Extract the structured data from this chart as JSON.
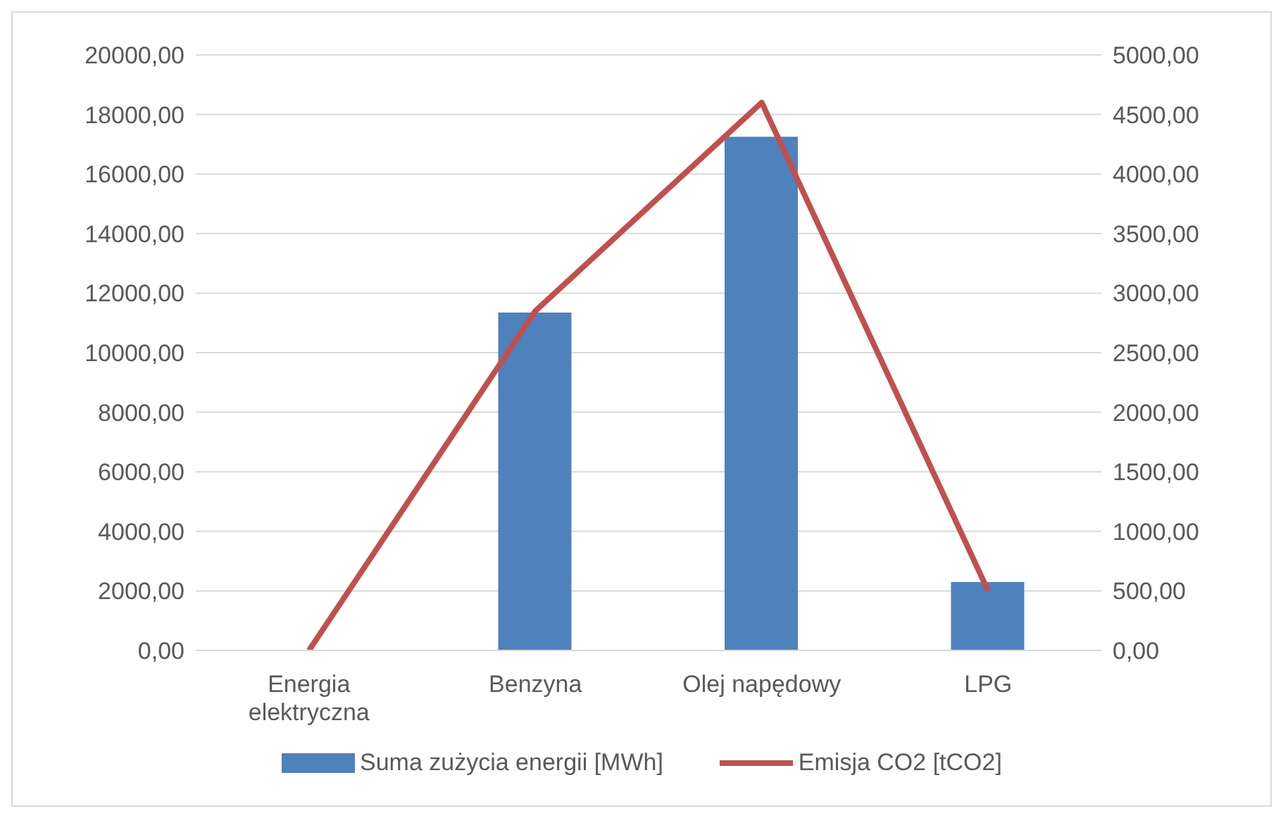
{
  "chart_data": {
    "type": "bar",
    "categories": [
      "Energia elektryczna",
      "Benzyna",
      "Olej napędowy",
      "LPG"
    ],
    "series": [
      {
        "name": "Suma zużycia energii [MWh]",
        "color": "#4f81bd",
        "values": [
          0,
          11350,
          17250,
          2300
        ]
      },
      {
        "name": "Emisja CO2 [tCO2]",
        "type": "line",
        "axis": "y2",
        "color": "#c0504d",
        "values": [
          0,
          2850,
          4600,
          500
        ]
      }
    ],
    "ylim": [
      0,
      20000
    ],
    "yticks": [
      {
        "value": 0,
        "label": "0,00"
      },
      {
        "value": 2000,
        "label": "2000,00"
      },
      {
        "value": 4000,
        "label": "4000,00"
      },
      {
        "value": 6000,
        "label": "6000,00"
      },
      {
        "value": 8000,
        "label": "8000,00"
      },
      {
        "value": 10000,
        "label": "10000,00"
      },
      {
        "value": 12000,
        "label": "12000,00"
      },
      {
        "value": 14000,
        "label": "14000,00"
      },
      {
        "value": 16000,
        "label": "16000,00"
      },
      {
        "value": 18000,
        "label": "18000,00"
      },
      {
        "value": 20000,
        "label": "20000,00"
      }
    ],
    "y2lim": [
      0,
      5000
    ],
    "y2ticks": [
      {
        "value": 0,
        "label": "0,00"
      },
      {
        "value": 500,
        "label": "500,00"
      },
      {
        "value": 1000,
        "label": "1000,00"
      },
      {
        "value": 1500,
        "label": "1500,00"
      },
      {
        "value": 2000,
        "label": "2000,00"
      },
      {
        "value": 2500,
        "label": "2500,00"
      },
      {
        "value": 3000,
        "label": "3000,00"
      },
      {
        "value": 3500,
        "label": "3500,00"
      },
      {
        "value": 4000,
        "label": "4000,00"
      },
      {
        "value": 4500,
        "label": "4500,00"
      },
      {
        "value": 5000,
        "label": "5000,00"
      }
    ],
    "grid": "y",
    "legend": "bottom",
    "marker": "none",
    "line_style": "solid"
  }
}
